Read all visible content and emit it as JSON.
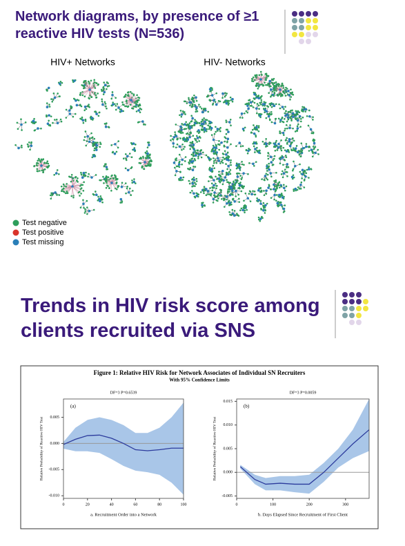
{
  "slides": [
    {
      "title": "Network diagrams, by presence of ≥1 reactive HIV tests (N=536)",
      "panels": [
        "HIV+ Networks",
        "HIV- Networks"
      ],
      "legend": [
        {
          "label": "Test negative",
          "color": "#2e9e5b"
        },
        {
          "label": "Test positive",
          "color": "#d9342b"
        },
        {
          "label": "Test missing",
          "color": "#2a7fb8"
        }
      ]
    },
    {
      "title": "Trends in HIV risk score among clients recruited via SNS"
    }
  ],
  "figure": {
    "title": "Figure 1: Relative HIV Risk for Network Associates of Individual SN Recruiters",
    "subtitle": "With 95% Confidence Limits"
  },
  "chart_data": [
    {
      "type": "line",
      "annotation": "DF=3   P=0.6539",
      "panel_label": "(a)",
      "xlabel": "a. Recruitment Order into a Network",
      "ylabel": "Relative Probability of Reactive HIV Test",
      "x": [
        0,
        10,
        20,
        30,
        40,
        50,
        60,
        70,
        80,
        90,
        100
      ],
      "values": [
        -0.0002,
        0.0008,
        0.0015,
        0.0016,
        0.001,
        0.0,
        -0.0012,
        -0.0014,
        -0.0012,
        -0.0009,
        -0.0009
      ],
      "upper": [
        0.0003,
        0.003,
        0.0045,
        0.005,
        0.0045,
        0.0035,
        0.002,
        0.002,
        0.003,
        0.005,
        0.0078
      ],
      "lower": [
        -0.001,
        -0.0015,
        -0.0015,
        -0.0018,
        -0.003,
        -0.0043,
        -0.0052,
        -0.0055,
        -0.006,
        -0.0075,
        -0.0098
      ],
      "color": "#2b3a9c",
      "band_color": "#a9c6e8",
      "reference_line": 0,
      "xlim": [
        0,
        100
      ],
      "xticks": [
        0,
        20,
        40,
        60,
        80,
        100
      ],
      "ylim": [
        -0.0105,
        0.0085
      ],
      "yticks": [
        {
          "value": -0.01,
          "label": "-0.010"
        },
        {
          "value": -0.005,
          "label": "-0.005"
        },
        {
          "value": 0,
          "label": "0.000"
        },
        {
          "value": 0.005,
          "label": "0.005"
        }
      ]
    },
    {
      "type": "line",
      "annotation": "DF=3   P=0.0059",
      "panel_label": "(b)",
      "xlabel": "b. Days Elapsed Since Recruitment of First Client",
      "ylabel": "Relative Probability of Reactive HIV Test",
      "x": [
        10,
        50,
        80,
        120,
        160,
        200,
        240,
        280,
        320,
        365
      ],
      "values": [
        0.0012,
        -0.0015,
        -0.0025,
        -0.0023,
        -0.0025,
        -0.0025,
        0.0,
        0.003,
        0.006,
        0.009
      ],
      "upper": [
        0.0016,
        -0.0005,
        -0.0012,
        -0.0008,
        -0.0008,
        -0.0005,
        0.002,
        0.005,
        0.009,
        0.0155
      ],
      "lower": [
        0.0008,
        -0.0025,
        -0.0038,
        -0.0038,
        -0.0042,
        -0.0045,
        -0.002,
        0.001,
        0.003,
        0.0045
      ],
      "color": "#2b3a9c",
      "band_color": "#a9c6e8",
      "reference_line": 0,
      "xlim": [
        0,
        365
      ],
      "xticks": [
        0,
        100,
        200,
        300
      ],
      "ylim": [
        -0.0055,
        0.0155
      ],
      "yticks": [
        {
          "value": -0.005,
          "label": "-0.005"
        },
        {
          "value": 0,
          "label": "0.000"
        },
        {
          "value": 0.005,
          "label": "0.005"
        },
        {
          "value": 0.01,
          "label": "0.010"
        },
        {
          "value": 0.015,
          "label": "0.015"
        }
      ]
    }
  ]
}
